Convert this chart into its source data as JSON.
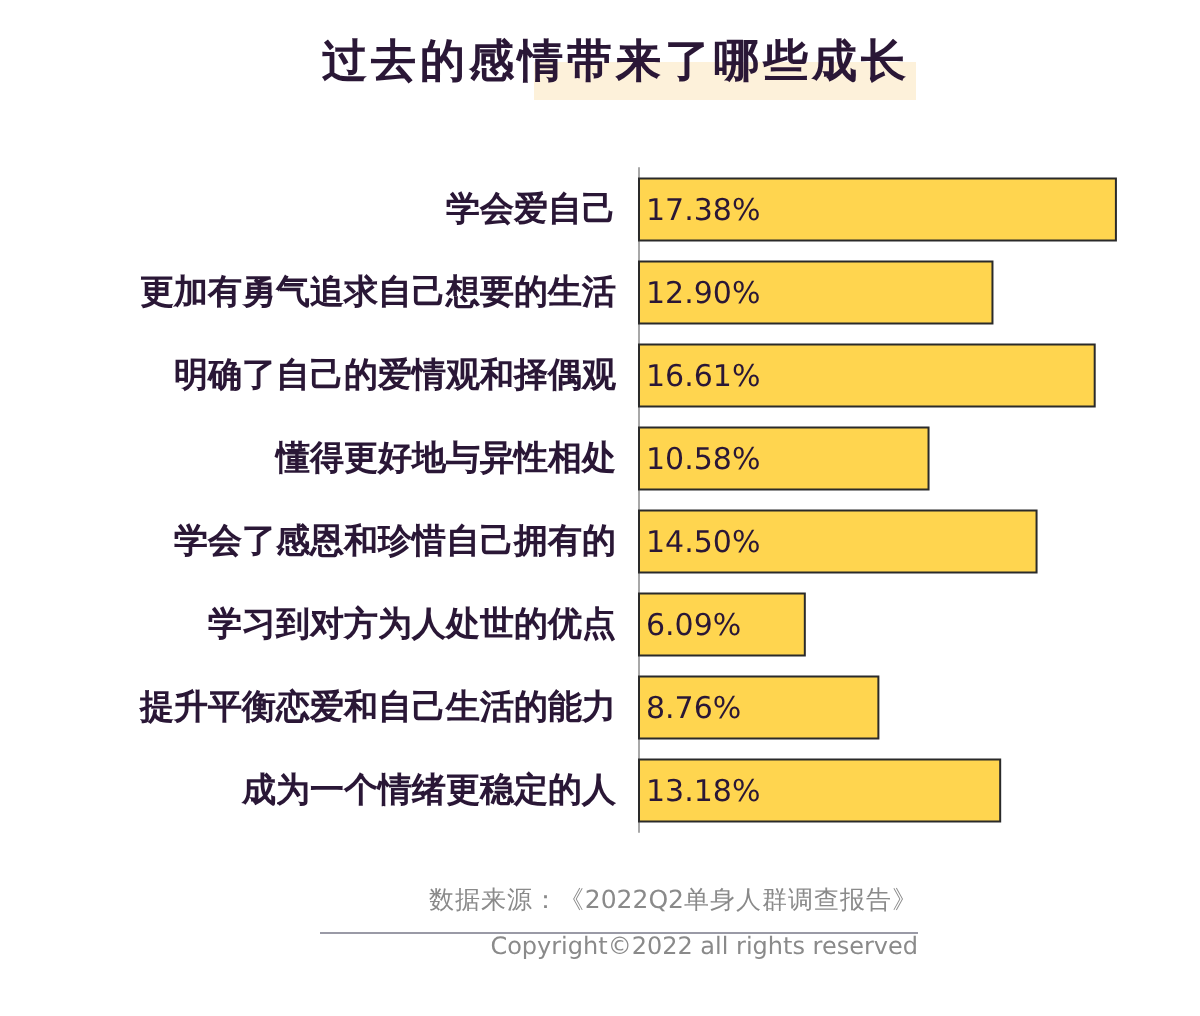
{
  "chart_data": {
    "type": "bar",
    "orientation": "horizontal",
    "title": "过去的感情带来了哪些成长",
    "categories": [
      "学会爱自己",
      "更加有勇气追求自己想要的生活",
      "明确了自己的爱情观和择偶观",
      "懂得更好地与异性相处",
      "学会了感恩和珍惜自己拥有的",
      "学习到对方为人处世的优点",
      "提升平衡恋爱和自己生活的能力",
      "成为一个情绪更稳定的人"
    ],
    "values": [
      17.38,
      12.9,
      16.61,
      10.58,
      14.5,
      6.09,
      8.76,
      13.18
    ],
    "value_labels": [
      "17.38%",
      "12.90%",
      "16.61%",
      "10.58%",
      "14.50%",
      "6.09%",
      "8.76%",
      "13.18%"
    ],
    "color": "#ffd54f",
    "tick_labels": "y",
    "annotations": [
      "数据来源：《2022Q2单身人群调查报告》",
      "Copyright©2022 all rights reserved"
    ]
  }
}
